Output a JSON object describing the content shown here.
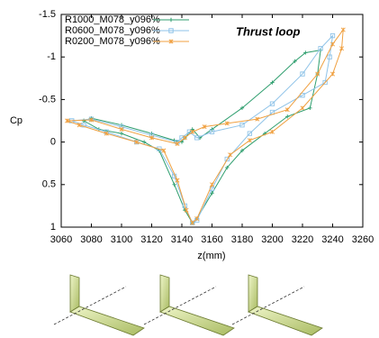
{
  "chart_data": {
    "type": "line",
    "annotation": "Thrust loop",
    "xlabel": "z(mm)",
    "ylabel": "Cp",
    "xlim": [
      3060,
      3260
    ],
    "xticks": [
      3060,
      3080,
      3100,
      3120,
      3140,
      3160,
      3180,
      3200,
      3220,
      3240,
      3260
    ],
    "ylim": [
      -1.5,
      1
    ],
    "yticks": [
      -1.5,
      -1,
      -0.5,
      0,
      0.5,
      1
    ],
    "y_reversed": true,
    "legend": "upper left",
    "series": [
      {
        "name": "R1000_M078_y096%",
        "color": "#2e9e6e",
        "marker": "plus",
        "x": [
          3075,
          3080,
          3100,
          3120,
          3135,
          3140,
          3142,
          3147,
          3152,
          3160,
          3180,
          3200,
          3215,
          3222,
          3232,
          3230,
          3225,
          3210,
          3195,
          3180,
          3170,
          3160,
          3150,
          3147,
          3142,
          3135,
          3125,
          3115,
          3100,
          3085,
          3075
        ],
        "values": [
          -0.25,
          -0.28,
          -0.2,
          -0.1,
          -0.02,
          0,
          -0.05,
          -0.15,
          -0.05,
          -0.15,
          -0.4,
          -0.7,
          -0.95,
          -1.05,
          -1.08,
          -0.8,
          -0.4,
          -0.3,
          -0.1,
          0.1,
          0.3,
          0.6,
          0.9,
          0.95,
          0.8,
          0.5,
          0.1,
          0,
          -0.1,
          -0.15,
          -0.25
        ]
      },
      {
        "name": "R0600_M078_y096%",
        "color": "#8fc3e8",
        "marker": "square",
        "x": [
          3067,
          3080,
          3100,
          3120,
          3137,
          3140,
          3145,
          3150,
          3160,
          3180,
          3200,
          3220,
          3232,
          3240,
          3238,
          3235,
          3220,
          3200,
          3185,
          3170,
          3160,
          3150,
          3147,
          3142,
          3135,
          3125,
          3110,
          3090,
          3075,
          3067
        ],
        "values": [
          -0.25,
          -0.27,
          -0.18,
          -0.08,
          0,
          -0.05,
          -0.12,
          -0.05,
          -0.12,
          -0.2,
          -0.45,
          -0.8,
          -1.1,
          -1.25,
          -1,
          -0.7,
          -0.55,
          -0.35,
          -0.1,
          0.2,
          0.55,
          0.92,
          0.95,
          0.75,
          0.4,
          0.08,
          0,
          -0.12,
          -0.2,
          -0.25
        ]
      },
      {
        "name": "R0200_M078_y096%",
        "color": "#f0a040",
        "marker": "cross",
        "x": [
          3064,
          3080,
          3100,
          3120,
          3137,
          3142,
          3147,
          3155,
          3170,
          3190,
          3210,
          3230,
          3240,
          3247,
          3246,
          3240,
          3220,
          3200,
          3185,
          3172,
          3160,
          3150,
          3147,
          3143,
          3137,
          3128,
          3110,
          3090,
          3072,
          3064
        ],
        "values": [
          -0.25,
          -0.26,
          -0.15,
          -0.05,
          0.02,
          -0.05,
          -0.12,
          -0.18,
          -0.22,
          -0.27,
          -0.38,
          -0.8,
          -1.15,
          -1.32,
          -1.1,
          -0.8,
          -0.4,
          -0.12,
          -0.02,
          0.15,
          0.5,
          0.9,
          0.95,
          0.8,
          0.45,
          0.1,
          0,
          -0.1,
          -0.2,
          -0.25
        ]
      }
    ]
  }
}
